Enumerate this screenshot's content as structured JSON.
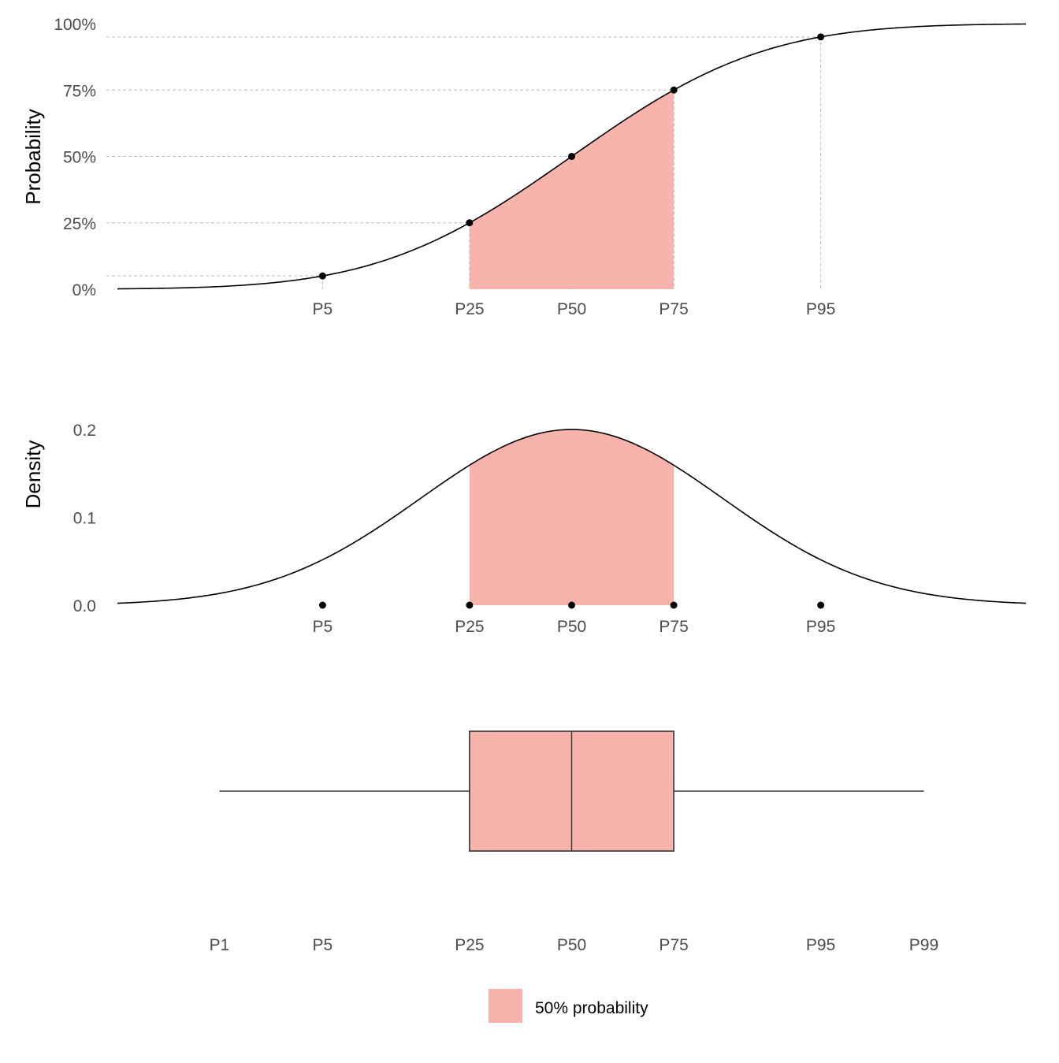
{
  "chart_data": [
    {
      "panel": "cdf",
      "type": "line",
      "ylabel": "Probability",
      "xlabel": "",
      "y_tick_labels": [
        "0%",
        "25%",
        "50%",
        "75%",
        "100%"
      ],
      "x_tick_labels": [
        "P5",
        "P25",
        "P50",
        "P75",
        "P95"
      ],
      "distribution": "normal",
      "mean": 50,
      "sd": 2,
      "xlim": [
        44,
        56
      ],
      "ylim": [
        0,
        1
      ],
      "points": [
        {
          "label": "P5",
          "x": 46.71,
          "y": 0.05
        },
        {
          "label": "P25",
          "x": 48.65,
          "y": 0.25
        },
        {
          "label": "P50",
          "x": 50.0,
          "y": 0.5
        },
        {
          "label": "P75",
          "x": 51.35,
          "y": 0.75
        },
        {
          "label": "P95",
          "x": 53.29,
          "y": 0.95
        }
      ],
      "shaded_interval": [
        "P25",
        "P75"
      ],
      "grid": true
    },
    {
      "panel": "density",
      "type": "area",
      "ylabel": "Density",
      "xlabel": "",
      "y_tick_labels": [
        "0.0",
        "0.1",
        "0.2"
      ],
      "x_tick_labels": [
        "P5",
        "P25",
        "P50",
        "P75",
        "P95"
      ],
      "ylim": [
        0,
        0.2
      ],
      "peak_density": 0.2,
      "shaded_interval": [
        "P25",
        "P75"
      ],
      "grid": false
    },
    {
      "panel": "boxplot",
      "type": "box",
      "x_tick_labels": [
        "P1",
        "P5",
        "P25",
        "P50",
        "P75",
        "P95",
        "P99"
      ],
      "whisker_low": "P1",
      "box_low": "P25",
      "median": "P50",
      "box_high": "P75",
      "whisker_high": "P99"
    }
  ],
  "legend": {
    "label": "50% probability",
    "color": "#f9b3ad",
    "placement": "bottom"
  },
  "colors": {
    "fill": "#f9b3ad",
    "line": "#000000",
    "grid": "#bdbdbd",
    "tick_text": "#4d4d4d"
  }
}
